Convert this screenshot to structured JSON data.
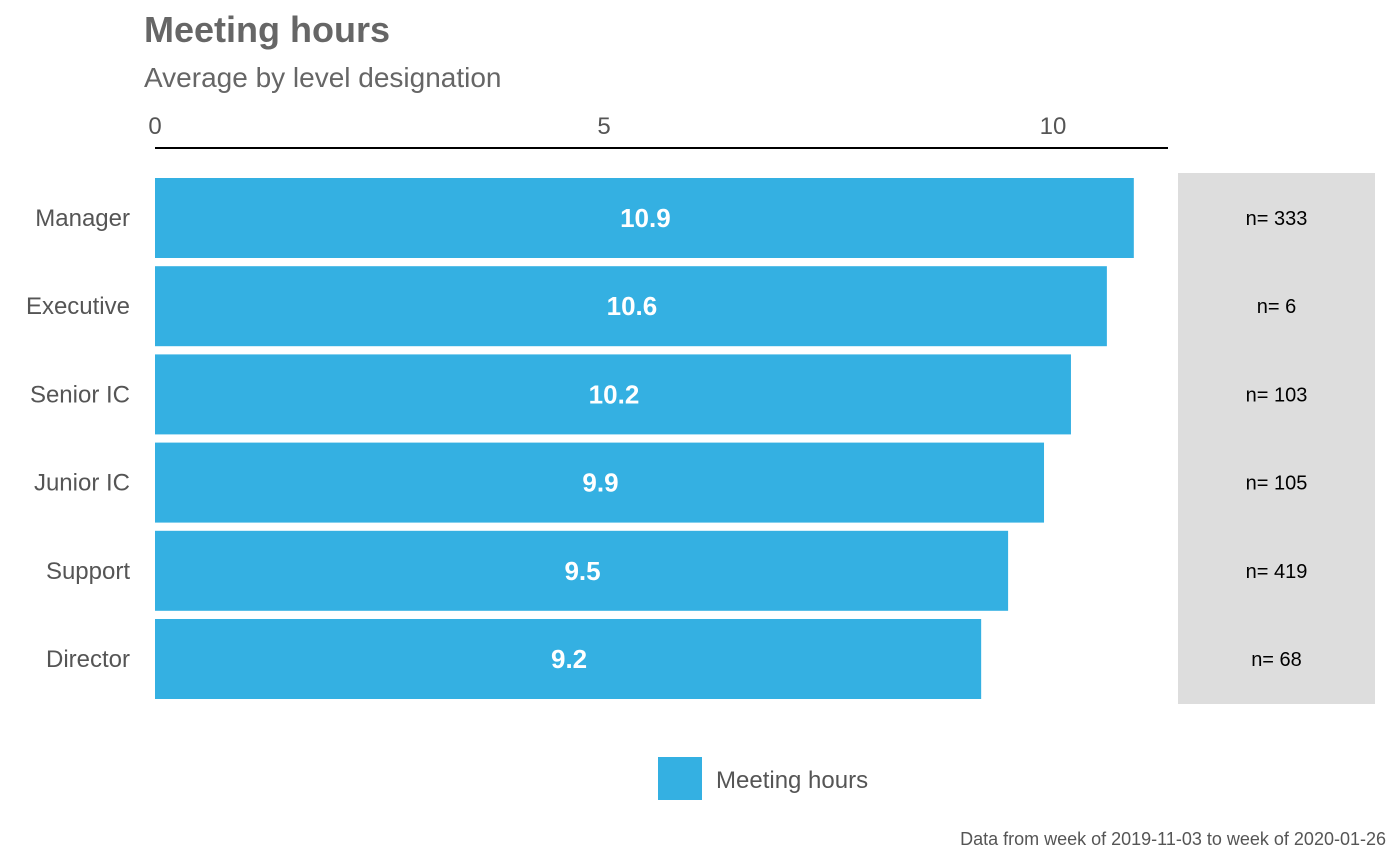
{
  "chart_data": {
    "type": "bar",
    "orientation": "horizontal",
    "title": "Meeting hours",
    "subtitle": "Average by level designation",
    "categories": [
      "Manager",
      "Executive",
      "Senior IC",
      "Junior IC",
      "Support",
      "Director"
    ],
    "series": [
      {
        "name": "Meeting hours",
        "values": [
          10.9,
          10.6,
          10.2,
          9.9,
          9.5,
          9.2
        ],
        "value_labels": [
          "10.9",
          "10.6",
          "10.2",
          "9.9",
          "9.5",
          "9.2"
        ],
        "color": "#34b0e2"
      }
    ],
    "counts": [
      "n= 333",
      "n= 6",
      "n= 103",
      "n= 105",
      "n= 419",
      "n= 68"
    ],
    "x_ticks": [
      0,
      5,
      10
    ],
    "x_tick_labels": [
      "0",
      "5",
      "10"
    ],
    "xlim": [
      0,
      11.3
    ],
    "axis_position": "top",
    "grid": false,
    "legend_position": "bottom",
    "count_panel_color": "#dddddd",
    "caption": "Data from week of 2019-11-03 to week of 2020-01-26"
  }
}
